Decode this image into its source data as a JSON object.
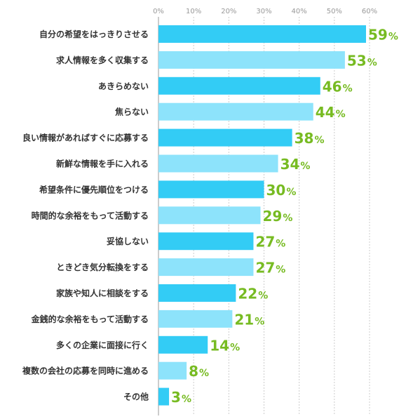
{
  "chart_data": {
    "type": "bar",
    "orientation": "horizontal",
    "categories": [
      "自分の希望をはっきりさせる",
      "求人情報を多く収集する",
      "あきらめない",
      "焦らない",
      "良い情報があればすぐに応募する",
      "新鮮な情報を手に入れる",
      "希望条件に優先順位をつける",
      "時間的な余裕をもって活動する",
      "妥協しない",
      "ときどき気分転換をする",
      "家族や知人に相談をする",
      "金銭的な余裕をもって活動する",
      "多くの企業に面接に行く",
      "複数の会社の応募を同時に進める",
      "その他"
    ],
    "values": [
      59,
      53,
      46,
      44,
      38,
      34,
      30,
      29,
      27,
      27,
      22,
      21,
      14,
      8,
      3
    ],
    "value_suffix": "%",
    "x_ticks": [
      "0%",
      "10%",
      "20%",
      "30%",
      "40%",
      "50%",
      "60%"
    ],
    "xlim": [
      0,
      60
    ],
    "grid": true,
    "colors": {
      "bar_dark": "#33ccf5",
      "bar_light": "#8de3fb",
      "label": "#77bb22",
      "grid": "#cccccc",
      "axis": "#999999"
    }
  }
}
